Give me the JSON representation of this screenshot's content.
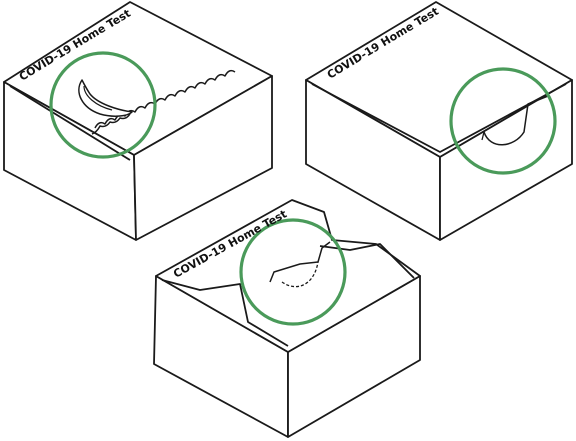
{
  "colors": {
    "outline": "#1a1a1a",
    "highlight": "#4a9a5a",
    "background": "#ffffff"
  },
  "boxes": [
    {
      "name": "box-1",
      "label": "COVID-19 Home Test",
      "detail": "torn-seal"
    },
    {
      "name": "box-2",
      "label": "COVID-19 Home Test",
      "detail": "tab-slot"
    },
    {
      "name": "box-3",
      "label": "COVID-19 Home Test",
      "detail": "tab-inserted"
    }
  ]
}
